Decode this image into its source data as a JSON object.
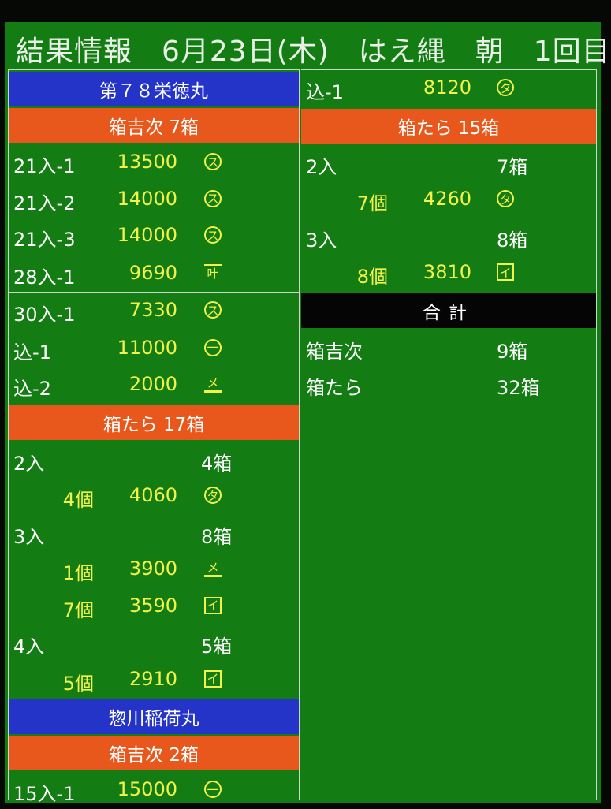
{
  "title": "結果情報　6月23日(木)　はえ縄　朝　1回目",
  "left": [
    {
      "type": "bar",
      "style": "blue",
      "text": "第７８栄徳丸"
    },
    {
      "type": "bar",
      "style": "orange",
      "text": "箱吉次 7箱"
    },
    {
      "type": "item",
      "label": "21入-1",
      "price": "13500",
      "mark": "ス",
      "mark_style": "circle"
    },
    {
      "type": "item",
      "label": "21入-2",
      "price": "14000",
      "mark": "ス",
      "mark_style": "circle"
    },
    {
      "type": "item",
      "label": "21入-3",
      "price": "14000",
      "mark": "ス",
      "mark_style": "circle"
    },
    {
      "type": "item",
      "label": "28入-1",
      "price": "9690",
      "mark": "叶",
      "mark_style": "over",
      "sep": true
    },
    {
      "type": "item",
      "label": "30入-1",
      "price": "7330",
      "mark": "ス",
      "mark_style": "circle",
      "sep": true
    },
    {
      "type": "item",
      "label": "込-1",
      "price": "11000",
      "mark": "一",
      "mark_style": "circle",
      "sep": true
    },
    {
      "type": "item",
      "label": "込-2",
      "price": "2000",
      "mark": "メ",
      "mark_style": "under"
    },
    {
      "type": "bar",
      "style": "orange",
      "text": "箱たら 17箱"
    },
    {
      "type": "size",
      "label": "2入",
      "boxes": "4箱"
    },
    {
      "type": "sub",
      "qty": "4個",
      "price": "4060",
      "mark": "タ",
      "mark_style": "circle"
    },
    {
      "type": "size",
      "label": "3入",
      "boxes": "8箱"
    },
    {
      "type": "sub",
      "qty": "1個",
      "price": "3900",
      "mark": "メ",
      "mark_style": "under"
    },
    {
      "type": "sub",
      "qty": "7個",
      "price": "3590",
      "mark": "イ",
      "mark_style": "square"
    },
    {
      "type": "size",
      "label": "4入",
      "boxes": "5箱"
    },
    {
      "type": "sub",
      "qty": "5個",
      "price": "2910",
      "mark": "イ",
      "mark_style": "square"
    },
    {
      "type": "bar",
      "style": "blue",
      "text": "惣川稲荷丸"
    },
    {
      "type": "bar",
      "style": "orange",
      "text": "箱吉次 2箱"
    },
    {
      "type": "item",
      "label": "15入-1",
      "price": "15000",
      "mark": "一",
      "mark_style": "circle"
    }
  ],
  "right": [
    {
      "type": "item",
      "label": "込-1",
      "price": "8120",
      "mark": "タ",
      "mark_style": "circle"
    },
    {
      "type": "bar",
      "style": "orange",
      "text": "箱たら 15箱"
    },
    {
      "type": "size",
      "label": "2入",
      "boxes": "7箱"
    },
    {
      "type": "sub",
      "qty": "7個",
      "price": "4260",
      "mark": "タ",
      "mark_style": "circle"
    },
    {
      "type": "size",
      "label": "3入",
      "boxes": "8箱"
    },
    {
      "type": "sub",
      "qty": "8個",
      "price": "3810",
      "mark": "イ",
      "mark_style": "square"
    },
    {
      "type": "bar",
      "style": "black",
      "text": "合計"
    },
    {
      "type": "size",
      "label": "箱吉次",
      "boxes": "9箱"
    },
    {
      "type": "size",
      "label": "箱たら",
      "boxes": "32箱"
    }
  ],
  "colors": {
    "background": "#137d14",
    "price": "#f2f24a",
    "ship_bar": "#2433c8",
    "category_bar": "#e8581c",
    "total_bar": "#050505"
  }
}
